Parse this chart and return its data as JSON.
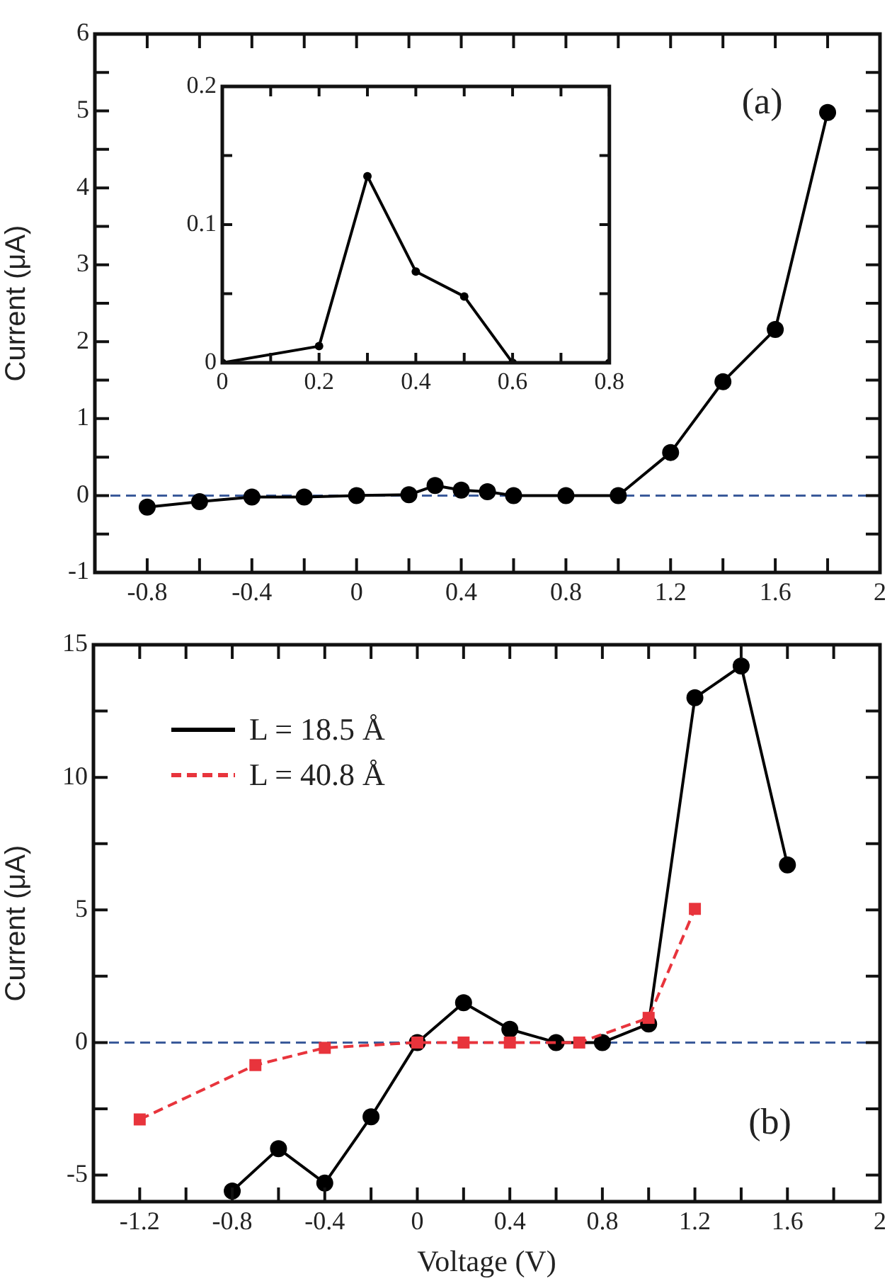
{
  "chart_data": [
    {
      "type": "line",
      "ylabel": "Current (μA)",
      "annotations": [
        "(a)"
      ],
      "xlim": [
        -1,
        2
      ],
      "ylim": [
        -1,
        6
      ],
      "xticks": [
        -0.8,
        {
          "value": -0.6,
          "label": null
        },
        -0.4,
        {
          "value": -0.2,
          "label": null
        },
        0,
        {
          "value": 0.2,
          "label": null
        },
        0.4,
        {
          "value": 0.6,
          "label": null
        },
        0.8,
        {
          "value": 1.0,
          "label": null
        },
        1.2,
        {
          "value": 1.4,
          "label": null
        },
        1.6,
        {
          "value": 1.8,
          "label": null
        },
        2
      ],
      "yticks": [
        -1,
        {
          "value": -0.5,
          "label": null
        },
        0,
        {
          "value": 0.5,
          "label": null
        },
        1,
        {
          "value": 1.5,
          "label": null
        },
        2,
        {
          "value": 2.5,
          "label": null
        },
        3,
        {
          "value": 3.5,
          "label": null
        },
        4,
        {
          "value": 4.5,
          "label": null
        },
        5,
        {
          "value": 5.5,
          "label": null
        },
        6
      ],
      "grid": false,
      "legend": false,
      "marker": "circle",
      "line_style": "solid",
      "ref_lines": [
        {
          "axis": "y",
          "value": 0,
          "color": "#3a5a9a",
          "line_style": "dashed"
        }
      ],
      "series": [
        {
          "color": "#000000",
          "x": [
            -0.8,
            -0.6,
            -0.4,
            -0.2,
            0,
            0.2,
            0.3,
            0.4,
            0.5,
            0.6,
            0.8,
            1.0,
            1.2,
            1.4,
            1.6,
            1.8
          ],
          "values": [
            -0.15,
            -0.08,
            -0.02,
            -0.02,
            0,
            0.01,
            0.13,
            0.07,
            0.05,
            0,
            0,
            0,
            0.56,
            1.48,
            2.16,
            4.98
          ]
        }
      ]
    },
    {
      "type": "line",
      "xlim": [
        0,
        0.8
      ],
      "ylim": [
        0,
        0.2
      ],
      "xticks": [
        0,
        {
          "value": 0.1,
          "label": null
        },
        0.2,
        {
          "value": 0.3,
          "label": null
        },
        0.4,
        {
          "value": 0.5,
          "label": null
        },
        0.6,
        {
          "value": 0.7,
          "label": null
        },
        0.8
      ],
      "yticks": [
        0,
        {
          "value": 0.05,
          "label": null
        },
        0.1,
        {
          "value": 0.15,
          "label": null
        },
        0.2
      ],
      "grid": false,
      "legend": false,
      "marker": "circle",
      "line_style": "solid",
      "series": [
        {
          "color": "#000000",
          "x": [
            0,
            0.2,
            0.3,
            0.4,
            0.5,
            0.6,
            0.8
          ],
          "values": [
            0,
            0.012,
            0.135,
            0.066,
            0.048,
            0,
            0
          ]
        }
      ]
    },
    {
      "type": "line",
      "xlabel": "Voltage (V)",
      "ylabel": "Current (μA)",
      "annotations": [
        "(b)"
      ],
      "xlim": [
        -1.4,
        2
      ],
      "ylim": [
        -6,
        15
      ],
      "xticks": [
        -1.2,
        {
          "value": -1.0,
          "label": null
        },
        -0.8,
        {
          "value": -0.6,
          "label": null
        },
        -0.4,
        {
          "value": -0.2,
          "label": null
        },
        0,
        {
          "value": 0.2,
          "label": null
        },
        0.4,
        {
          "value": 0.6,
          "label": null
        },
        0.8,
        {
          "value": 1.0,
          "label": null
        },
        1.2,
        {
          "value": 1.4,
          "label": null
        },
        1.6,
        {
          "value": 1.8,
          "label": null
        },
        2
      ],
      "yticks": [
        -5,
        {
          "value": -2.5,
          "label": null
        },
        0,
        {
          "value": 2.5,
          "label": null
        },
        5,
        {
          "value": 7.5,
          "label": null
        },
        10,
        {
          "value": 12.5,
          "label": null
        },
        15
      ],
      "grid": false,
      "legend": "top left",
      "ref_lines": [
        {
          "axis": "y",
          "value": 0,
          "color": "#3a5a9a",
          "line_style": "dashed"
        }
      ],
      "series": [
        {
          "name": "L = 18.5 Å",
          "color": "#000000",
          "marker": "circle",
          "line_style": "solid",
          "x": [
            -0.8,
            -0.6,
            -0.4,
            -0.2,
            0,
            0.2,
            0.4,
            0.6,
            0.8,
            1.0,
            1.2,
            1.4,
            1.6
          ],
          "values": [
            -5.6,
            -4.0,
            -5.3,
            -2.8,
            0,
            1.5,
            0.5,
            0,
            0,
            0.7,
            13.0,
            14.2,
            6.7
          ]
        },
        {
          "name": "L = 40.8 Å",
          "color": "#e8343c",
          "marker": "square",
          "line_style": "dashed",
          "x": [
            -1.2,
            -0.7,
            -0.4,
            0,
            0.2,
            0.4,
            0.7,
            1.0,
            1.2
          ],
          "values": [
            -2.9,
            -0.85,
            -0.2,
            0,
            0,
            0,
            0,
            0.93,
            5.04
          ]
        }
      ]
    }
  ]
}
